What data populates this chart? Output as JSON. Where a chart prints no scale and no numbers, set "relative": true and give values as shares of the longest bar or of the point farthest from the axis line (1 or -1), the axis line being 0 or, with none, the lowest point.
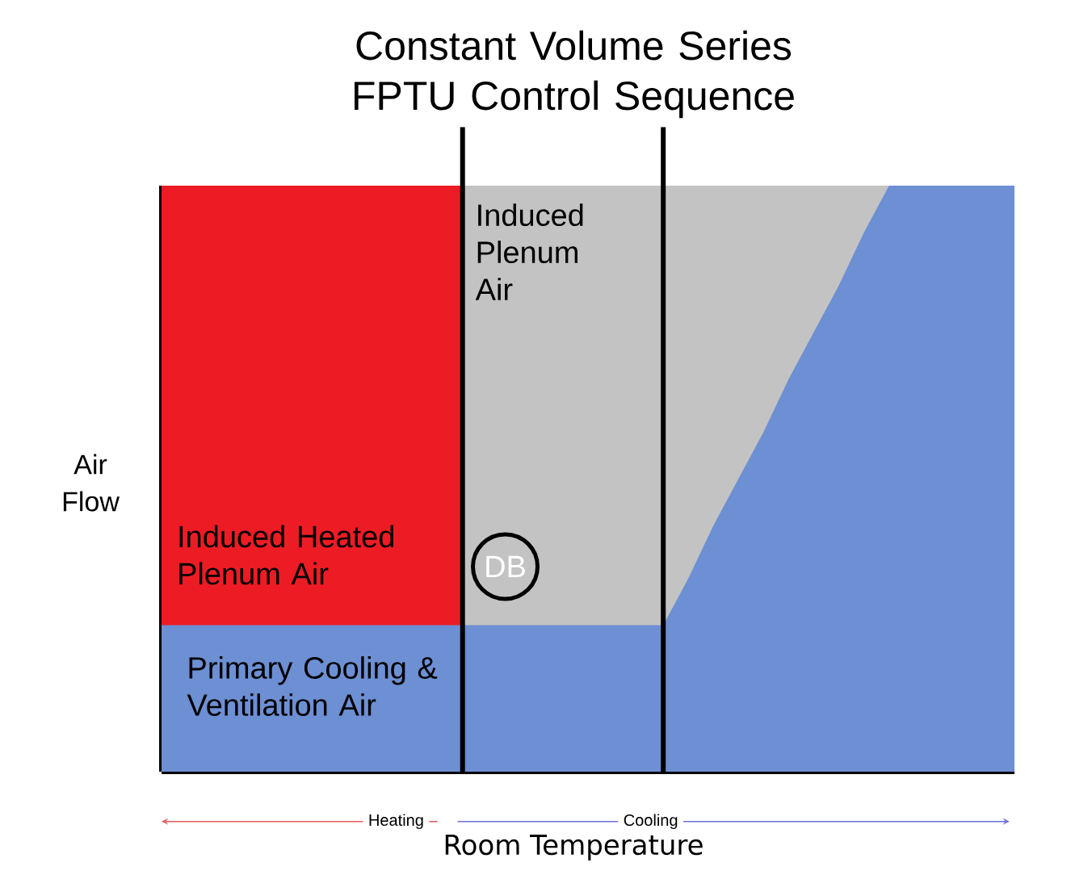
{
  "chart_data": {
    "type": "area",
    "title": "Constant Volume Series FPTU Control Sequence",
    "xlabel": "Room Temperature",
    "ylabel": "Air Flow",
    "relative": true,
    "categories": [
      null,
      null,
      null,
      null,
      null,
      null,
      null,
      null,
      null,
      null,
      null,
      null,
      null,
      null,
      null,
      null,
      null,
      null,
      null,
      null,
      null,
      null,
      null,
      null,
      null,
      null,
      null,
      null,
      null,
      null,
      null,
      null,
      null,
      null,
      null
    ],
    "series": [
      {
        "name": "Induced Plenum Air",
        "color": "#c3c3c3",
        "values": [
          null,
          null,
          null,
          null,
          null,
          null,
          null,
          null,
          null,
          null,
          null,
          null,
          1,
          1,
          1,
          1,
          1,
          1,
          1,
          1,
          1,
          1,
          1,
          1,
          1,
          1,
          1,
          1,
          1,
          1,
          null,
          null,
          null,
          null,
          null
        ]
      },
      {
        "name": "Induced Heated Plenum Air",
        "color": "#ed1c24",
        "values": [
          1,
          1,
          1,
          1,
          1,
          1,
          1,
          1,
          1,
          1,
          1,
          1,
          1,
          null,
          null,
          null,
          null,
          null,
          null,
          null,
          null,
          null,
          null,
          null,
          null,
          null,
          null,
          null,
          null,
          null,
          null,
          null,
          null,
          null,
          null
        ]
      },
      {
        "name": "Primary Cooling & Ventilation Air",
        "color": "#6d8fd3",
        "values": [
          0.25,
          0.25,
          0.25,
          0.25,
          0.25,
          0.25,
          0.25,
          0.25,
          0.25,
          0.25,
          0.25,
          0.25,
          0.25,
          0.25,
          0.25,
          0.25,
          0.25,
          0.25,
          0.25,
          0.25,
          0.25,
          0.33,
          0.42,
          0.5,
          0.58,
          0.67,
          0.75,
          0.83,
          0.92,
          1,
          1,
          1,
          1,
          1,
          1
        ]
      }
    ],
    "annotations": [
      "DB",
      "Heating",
      "Cooling"
    ]
  }
}
